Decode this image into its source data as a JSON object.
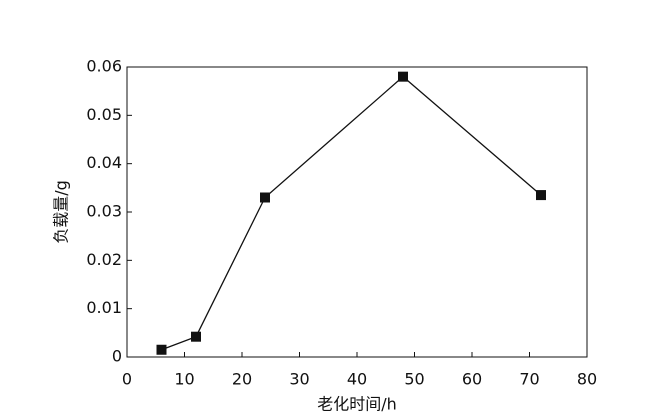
{
  "chart_data": {
    "type": "line",
    "x_label": "老化时间/h",
    "y_label": "负载量/g",
    "x": [
      6,
      12,
      24,
      48,
      72
    ],
    "values": [
      0.0015,
      0.0042,
      0.033,
      0.058,
      0.0335
    ],
    "color": "#111111",
    "xlim": [
      0,
      80
    ],
    "xticks": [
      0,
      10,
      20,
      30,
      40,
      50,
      60,
      70,
      80
    ],
    "ylim": [
      0,
      0.06
    ],
    "yticks": [
      0,
      0.01,
      0.02,
      0.03,
      0.04,
      0.05,
      0.06
    ],
    "marker": "square",
    "grid": false
  }
}
